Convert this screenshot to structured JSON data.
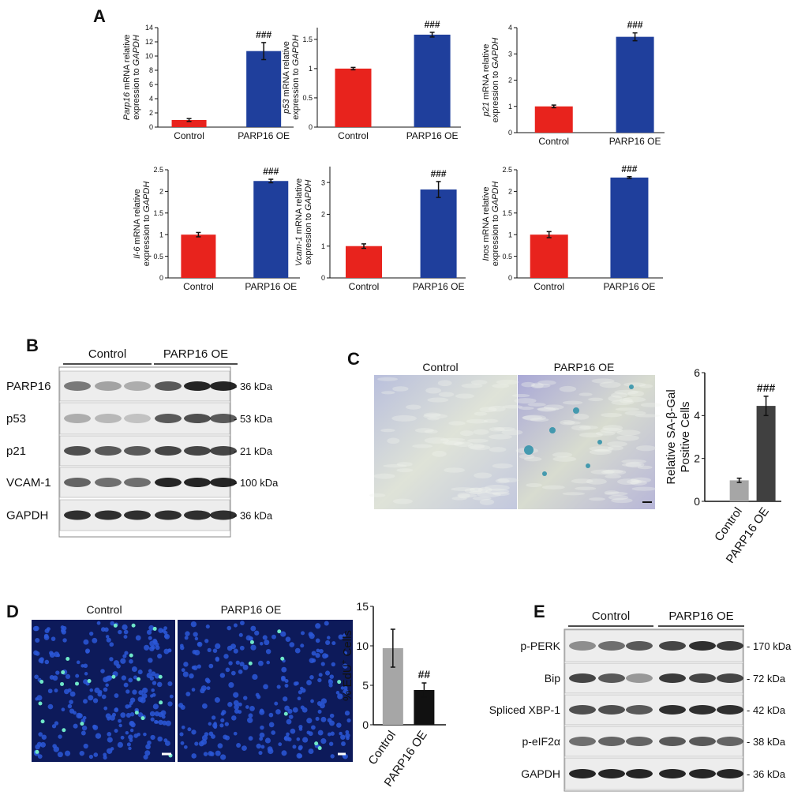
{
  "panels": {
    "a": "A",
    "b": "B",
    "c": "C",
    "d": "D",
    "e": "E"
  },
  "chart_data": [
    {
      "type": "bar",
      "ylabel": {
        "gene": "Parp16",
        "text": "mRNA relative",
        "line2": "expression to",
        "ref": "GAPDH"
      },
      "categories": [
        "Control",
        "PARP16 OE"
      ],
      "values": [
        1.0,
        10.7
      ],
      "errors": [
        0.2,
        1.2
      ],
      "colors": [
        "#e8231d",
        "#1f3f9c"
      ],
      "annotation": "###",
      "ylim": [
        0,
        14
      ],
      "yticks": [
        0,
        2,
        4,
        6,
        8,
        10,
        12,
        14
      ]
    },
    {
      "type": "bar",
      "ylabel": {
        "gene": "p53",
        "text": "mRNA relative",
        "line2": "expression to",
        "ref": "GAPDH"
      },
      "categories": [
        "Control",
        "PARP16 OE"
      ],
      "values": [
        1.0,
        1.58
      ],
      "errors": [
        0.02,
        0.04
      ],
      "colors": [
        "#e8231d",
        "#1f3f9c"
      ],
      "annotation": "###",
      "ylim": [
        0,
        1.7
      ],
      "yticks": [
        0,
        0.5,
        1,
        1.5
      ]
    },
    {
      "type": "bar",
      "ylabel": {
        "gene": "p21",
        "text": "mRNA relative",
        "line2": "expression to",
        "ref": "GAPDH"
      },
      "categories": [
        "Control",
        "PARP16 OE"
      ],
      "values": [
        1.0,
        3.65
      ],
      "errors": [
        0.05,
        0.15
      ],
      "colors": [
        "#e8231d",
        "#1f3f9c"
      ],
      "annotation": "###",
      "ylim": [
        0,
        4
      ],
      "yticks": [
        0,
        1,
        2,
        3,
        4
      ]
    },
    {
      "type": "bar",
      "ylabel": {
        "gene": "Il-6",
        "text": "mRNA relative",
        "line2": "expression to",
        "ref": "GAPDH"
      },
      "categories": [
        "Control",
        "PARP16 OE"
      ],
      "values": [
        1.0,
        2.24
      ],
      "errors": [
        0.05,
        0.04
      ],
      "colors": [
        "#e8231d",
        "#1f3f9c"
      ],
      "annotation": "###",
      "ylim": [
        0,
        2.5
      ],
      "yticks": [
        0,
        0.5,
        1,
        1.5,
        2,
        2.5
      ]
    },
    {
      "type": "bar",
      "ylabel": {
        "gene": "Vcam-1",
        "text": "mRNA relative",
        "line2": "expression to",
        "ref": "GAPDH"
      },
      "categories": [
        "Control",
        "PARP16 OE"
      ],
      "values": [
        1.0,
        2.78
      ],
      "errors": [
        0.07,
        0.25
      ],
      "colors": [
        "#e8231d",
        "#1f3f9c"
      ],
      "annotation": "###",
      "ylim": [
        0,
        3.5
      ],
      "yticks": [
        0,
        1,
        2,
        3
      ]
    },
    {
      "type": "bar",
      "ylabel": {
        "gene": "Inos",
        "text": "mRNA relative",
        "line2": "expression to",
        "ref": "GAPDH"
      },
      "categories": [
        "Control",
        "PARP16 OE"
      ],
      "values": [
        1.0,
        2.32
      ],
      "errors": [
        0.07,
        0.02
      ],
      "colors": [
        "#e8231d",
        "#1f3f9c"
      ],
      "annotation": "###",
      "ylim": [
        0,
        2.5
      ],
      "yticks": [
        0,
        0.5,
        1,
        1.5,
        2,
        2.5
      ]
    },
    {
      "type": "bar",
      "ylabel": {
        "line1": "Relative SA-β-Gal",
        "line2": "Positive Cells"
      },
      "categories": [
        "Control",
        "PARP16 OE"
      ],
      "values": [
        0.98,
        4.45
      ],
      "errors": [
        0.1,
        0.45
      ],
      "colors": [
        "#a6a6a6",
        "#404040"
      ],
      "annotation": "###",
      "ylim": [
        0,
        6
      ],
      "yticks": [
        0,
        2,
        4,
        6
      ]
    },
    {
      "type": "bar",
      "ylabel": {
        "text": "% EdU",
        "sup": "+",
        "rest": "Cells"
      },
      "categories": [
        "Control",
        "PARP16 OE"
      ],
      "values": [
        9.7,
        4.4
      ],
      "errors": [
        2.4,
        0.9
      ],
      "colors": [
        "#a6a6a6",
        "#111111"
      ],
      "annotation": "##",
      "ylim": [
        0,
        15
      ],
      "yticks": [
        0,
        5,
        10,
        15
      ]
    }
  ],
  "blot_b": {
    "groups": [
      "Control",
      "PARP16 OE"
    ],
    "rows": [
      {
        "label": "PARP16",
        "size": "- 36 kDa"
      },
      {
        "label": "p53",
        "size": "- 53 kDa"
      },
      {
        "label": "p21",
        "size": "- 21 kDa"
      },
      {
        "label": "VCAM-1",
        "size": "- 100 kDa"
      },
      {
        "label": "GAPDH",
        "size": "- 36 kDa"
      }
    ]
  },
  "image_c": {
    "titles": [
      "Control",
      "PARP16 OE"
    ]
  },
  "image_d": {
    "titles": [
      "Control",
      "PARP16 OE"
    ]
  },
  "blot_e": {
    "groups": [
      "Control",
      "PARP16 OE"
    ],
    "rows": [
      {
        "label": "p-PERK",
        "size": "- 170 kDa"
      },
      {
        "label": "Bip",
        "size": "- 72 kDa"
      },
      {
        "label": "Spliced XBP-1",
        "size": "- 42 kDa"
      },
      {
        "label": "p-eIF2α",
        "size": "- 38 kDa"
      },
      {
        "label": "GAPDH",
        "size": "- 36 kDa"
      }
    ]
  }
}
